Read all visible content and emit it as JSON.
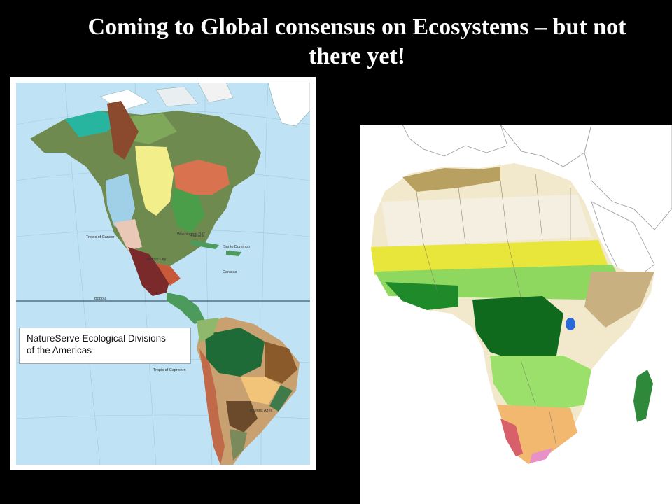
{
  "slide": {
    "title_line1": "Coming to Global consensus on Ecosystems – but not",
    "title_line2": "there yet!"
  },
  "americas_map": {
    "legend_line1": "NatureServe Ecological Divisions",
    "legend_line2": "of the Americas",
    "ocean_color": "#bfe3f5",
    "labels": {
      "washington": "Washington D.C.",
      "havana": "Havana",
      "mexico_city": "Mexico City",
      "santo_domingo": "Santo Domingo",
      "caracas": "Caracas",
      "bogota": "Bogota",
      "tropic_cancer": "Tropic of Cancer",
      "tropic_capricorn": "Tropic of Capricorn",
      "buenos_aires": "Buenos Aires"
    }
  },
  "africa_map": {
    "background": "#ffffff"
  }
}
